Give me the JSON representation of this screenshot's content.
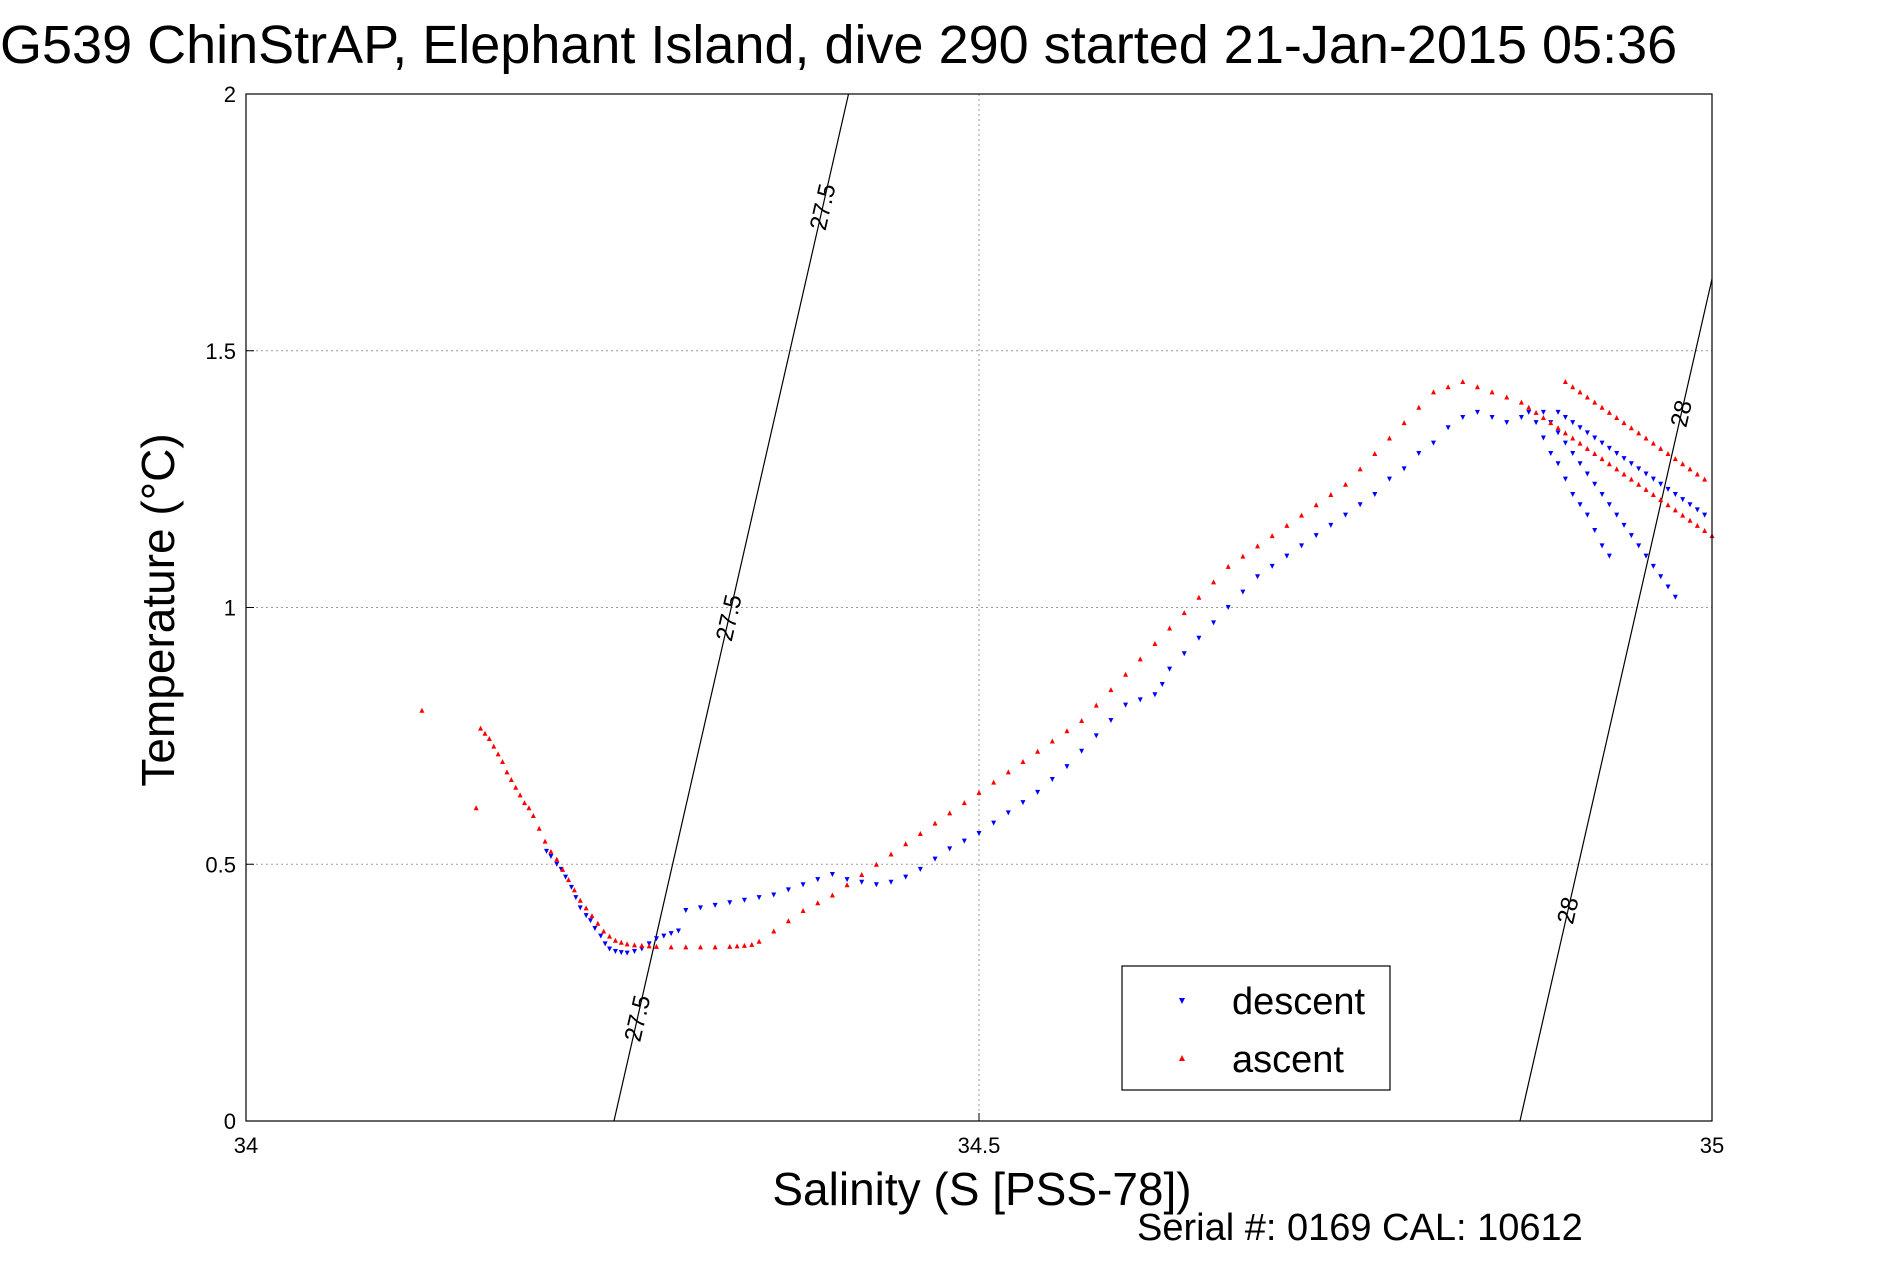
{
  "chart_data": {
    "type": "scatter",
    "title": "G539 ChinStrAP, Elephant Island, dive 290 started 21-Jan-2015 05:36",
    "xlabel": "Salinity (S [PSS-78])",
    "ylabel": "Temperature (°C)",
    "xlim": [
      34,
      35
    ],
    "ylim": [
      0,
      2
    ],
    "xticks": [
      34,
      34.5,
      35
    ],
    "xtick_labels": [
      "34",
      "34.5",
      "35"
    ],
    "yticks": [
      0,
      0.5,
      1,
      1.5,
      2
    ],
    "ytick_labels": [
      "0",
      "0.5",
      "1",
      "1.5",
      "2"
    ],
    "grid": true,
    "legend_position": "bottom-right",
    "isopycnals": [
      {
        "label": "27.5",
        "x_at_ymin": 34.251,
        "x_at_ymax": 34.411
      },
      {
        "label": "28",
        "x_at_ymin": 34.869,
        "x_at_ymax": 35.0,
        "y_at_xmax": 1.64
      }
    ],
    "series": [
      {
        "name": "descent",
        "color": "#0000ff",
        "marker": "triangle-down",
        "points": [
          [
            34.205,
            0.525
          ],
          [
            34.208,
            0.515
          ],
          [
            34.212,
            0.5
          ],
          [
            34.215,
            0.49
          ],
          [
            34.218,
            0.475
          ],
          [
            34.222,
            0.455
          ],
          [
            34.225,
            0.435
          ],
          [
            34.228,
            0.415
          ],
          [
            34.232,
            0.4
          ],
          [
            34.235,
            0.39
          ],
          [
            34.238,
            0.375
          ],
          [
            34.242,
            0.36
          ],
          [
            34.245,
            0.345
          ],
          [
            34.248,
            0.335
          ],
          [
            34.252,
            0.33
          ],
          [
            34.256,
            0.328
          ],
          [
            34.26,
            0.327
          ],
          [
            34.265,
            0.33
          ],
          [
            34.27,
            0.335
          ],
          [
            34.275,
            0.345
          ],
          [
            34.28,
            0.355
          ],
          [
            34.285,
            0.36
          ],
          [
            34.29,
            0.365
          ],
          [
            34.295,
            0.37
          ],
          [
            34.3,
            0.41
          ],
          [
            34.31,
            0.415
          ],
          [
            34.32,
            0.42
          ],
          [
            34.33,
            0.425
          ],
          [
            34.34,
            0.43
          ],
          [
            34.35,
            0.435
          ],
          [
            34.36,
            0.44
          ],
          [
            34.37,
            0.45
          ],
          [
            34.38,
            0.46
          ],
          [
            34.39,
            0.47
          ],
          [
            34.4,
            0.48
          ],
          [
            34.41,
            0.47
          ],
          [
            34.42,
            0.465
          ],
          [
            34.43,
            0.46
          ],
          [
            34.44,
            0.465
          ],
          [
            34.45,
            0.475
          ],
          [
            34.46,
            0.49
          ],
          [
            34.47,
            0.51
          ],
          [
            34.48,
            0.53
          ],
          [
            34.49,
            0.545
          ],
          [
            34.5,
            0.56
          ],
          [
            34.51,
            0.58
          ],
          [
            34.52,
            0.6
          ],
          [
            34.53,
            0.62
          ],
          [
            34.54,
            0.64
          ],
          [
            34.55,
            0.665
          ],
          [
            34.56,
            0.69
          ],
          [
            34.57,
            0.72
          ],
          [
            34.58,
            0.75
          ],
          [
            34.59,
            0.78
          ],
          [
            34.6,
            0.81
          ],
          [
            34.61,
            0.82
          ],
          [
            34.62,
            0.83
          ],
          [
            34.625,
            0.85
          ],
          [
            34.63,
            0.88
          ],
          [
            34.64,
            0.91
          ],
          [
            34.65,
            0.94
          ],
          [
            34.66,
            0.97
          ],
          [
            34.67,
            1.0
          ],
          [
            34.68,
            1.03
          ],
          [
            34.69,
            1.06
          ],
          [
            34.7,
            1.08
          ],
          [
            34.71,
            1.1
          ],
          [
            34.72,
            1.12
          ],
          [
            34.73,
            1.14
          ],
          [
            34.74,
            1.16
          ],
          [
            34.75,
            1.18
          ],
          [
            34.76,
            1.2
          ],
          [
            34.77,
            1.22
          ],
          [
            34.78,
            1.25
          ],
          [
            34.79,
            1.27
          ],
          [
            34.8,
            1.3
          ],
          [
            34.81,
            1.32
          ],
          [
            34.82,
            1.35
          ],
          [
            34.83,
            1.37
          ],
          [
            34.84,
            1.38
          ],
          [
            34.85,
            1.37
          ],
          [
            34.86,
            1.36
          ],
          [
            34.87,
            1.37
          ],
          [
            34.875,
            1.38
          ],
          [
            34.88,
            1.36
          ],
          [
            34.885,
            1.33
          ],
          [
            34.89,
            1.3
          ],
          [
            34.895,
            1.28
          ],
          [
            34.9,
            1.25
          ],
          [
            34.905,
            1.22
          ],
          [
            34.91,
            1.2
          ],
          [
            34.915,
            1.18
          ],
          [
            34.92,
            1.15
          ],
          [
            34.925,
            1.12
          ],
          [
            34.93,
            1.1
          ],
          [
            34.885,
            1.38
          ],
          [
            34.89,
            1.36
          ],
          [
            34.895,
            1.34
          ],
          [
            34.9,
            1.32
          ],
          [
            34.905,
            1.3
          ],
          [
            34.91,
            1.28
          ],
          [
            34.915,
            1.26
          ],
          [
            34.92,
            1.24
          ],
          [
            34.925,
            1.22
          ],
          [
            34.93,
            1.2
          ],
          [
            34.935,
            1.18
          ],
          [
            34.94,
            1.16
          ],
          [
            34.945,
            1.14
          ],
          [
            34.95,
            1.12
          ],
          [
            34.955,
            1.1
          ],
          [
            34.96,
            1.08
          ],
          [
            34.965,
            1.06
          ],
          [
            34.97,
            1.04
          ],
          [
            34.975,
            1.02
          ],
          [
            34.895,
            1.38
          ],
          [
            34.9,
            1.37
          ],
          [
            34.905,
            1.36
          ],
          [
            34.91,
            1.35
          ],
          [
            34.915,
            1.34
          ],
          [
            34.92,
            1.33
          ],
          [
            34.925,
            1.32
          ],
          [
            34.93,
            1.31
          ],
          [
            34.935,
            1.3
          ],
          [
            34.94,
            1.29
          ],
          [
            34.945,
            1.28
          ],
          [
            34.95,
            1.27
          ],
          [
            34.955,
            1.26
          ],
          [
            34.96,
            1.25
          ],
          [
            34.965,
            1.24
          ],
          [
            34.97,
            1.23
          ],
          [
            34.975,
            1.22
          ],
          [
            34.98,
            1.21
          ],
          [
            34.985,
            1.2
          ],
          [
            34.99,
            1.19
          ],
          [
            34.995,
            1.18
          ]
        ]
      },
      {
        "name": "ascent",
        "color": "#ff0000",
        "marker": "triangle-up",
        "points": [
          [
            34.12,
            0.8
          ],
          [
            34.16,
            0.765
          ],
          [
            34.163,
            0.755
          ],
          [
            34.166,
            0.745
          ],
          [
            34.169,
            0.73
          ],
          [
            34.172,
            0.715
          ],
          [
            34.175,
            0.7
          ],
          [
            34.178,
            0.68
          ],
          [
            34.181,
            0.665
          ],
          [
            34.184,
            0.65
          ],
          [
            34.187,
            0.635
          ],
          [
            34.19,
            0.62
          ],
          [
            34.193,
            0.61
          ],
          [
            34.157,
            0.61
          ],
          [
            34.196,
            0.595
          ],
          [
            34.2,
            0.57
          ],
          [
            34.204,
            0.545
          ],
          [
            34.208,
            0.525
          ],
          [
            34.212,
            0.51
          ],
          [
            34.216,
            0.49
          ],
          [
            34.22,
            0.47
          ],
          [
            34.224,
            0.45
          ],
          [
            34.228,
            0.43
          ],
          [
            34.232,
            0.415
          ],
          [
            34.236,
            0.4
          ],
          [
            34.24,
            0.385
          ],
          [
            34.244,
            0.37
          ],
          [
            34.248,
            0.36
          ],
          [
            34.252,
            0.352
          ],
          [
            34.256,
            0.348
          ],
          [
            34.26,
            0.345
          ],
          [
            34.265,
            0.343
          ],
          [
            34.27,
            0.342
          ],
          [
            34.275,
            0.341
          ],
          [
            34.28,
            0.34
          ],
          [
            34.29,
            0.339
          ],
          [
            34.3,
            0.339
          ],
          [
            34.31,
            0.339
          ],
          [
            34.32,
            0.339
          ],
          [
            34.33,
            0.34
          ],
          [
            34.335,
            0.341
          ],
          [
            34.34,
            0.342
          ],
          [
            34.345,
            0.344
          ],
          [
            34.35,
            0.35
          ],
          [
            34.36,
            0.37
          ],
          [
            34.37,
            0.39
          ],
          [
            34.38,
            0.41
          ],
          [
            34.39,
            0.425
          ],
          [
            34.4,
            0.44
          ],
          [
            34.41,
            0.46
          ],
          [
            34.42,
            0.48
          ],
          [
            34.43,
            0.5
          ],
          [
            34.44,
            0.52
          ],
          [
            34.45,
            0.54
          ],
          [
            34.46,
            0.56
          ],
          [
            34.47,
            0.58
          ],
          [
            34.48,
            0.6
          ],
          [
            34.49,
            0.62
          ],
          [
            34.5,
            0.64
          ],
          [
            34.51,
            0.66
          ],
          [
            34.52,
            0.68
          ],
          [
            34.53,
            0.7
          ],
          [
            34.54,
            0.72
          ],
          [
            34.55,
            0.74
          ],
          [
            34.56,
            0.76
          ],
          [
            34.57,
            0.78
          ],
          [
            34.58,
            0.81
          ],
          [
            34.59,
            0.84
          ],
          [
            34.6,
            0.87
          ],
          [
            34.61,
            0.9
          ],
          [
            34.62,
            0.93
          ],
          [
            34.63,
            0.96
          ],
          [
            34.64,
            0.99
          ],
          [
            34.65,
            1.02
          ],
          [
            34.66,
            1.05
          ],
          [
            34.67,
            1.08
          ],
          [
            34.68,
            1.1
          ],
          [
            34.69,
            1.12
          ],
          [
            34.7,
            1.14
          ],
          [
            34.71,
            1.16
          ],
          [
            34.72,
            1.18
          ],
          [
            34.73,
            1.2
          ],
          [
            34.74,
            1.22
          ],
          [
            34.75,
            1.24
          ],
          [
            34.76,
            1.27
          ],
          [
            34.77,
            1.3
          ],
          [
            34.78,
            1.33
          ],
          [
            34.79,
            1.36
          ],
          [
            34.8,
            1.39
          ],
          [
            34.81,
            1.42
          ],
          [
            34.82,
            1.43
          ],
          [
            34.83,
            1.44
          ],
          [
            34.84,
            1.43
          ],
          [
            34.85,
            1.42
          ],
          [
            34.86,
            1.41
          ],
          [
            34.87,
            1.4
          ],
          [
            34.875,
            1.39
          ],
          [
            34.88,
            1.38
          ],
          [
            34.885,
            1.37
          ],
          [
            34.89,
            1.36
          ],
          [
            34.895,
            1.35
          ],
          [
            34.9,
            1.34
          ],
          [
            34.905,
            1.33
          ],
          [
            34.91,
            1.32
          ],
          [
            34.915,
            1.31
          ],
          [
            34.92,
            1.3
          ],
          [
            34.925,
            1.29
          ],
          [
            34.93,
            1.28
          ],
          [
            34.935,
            1.27
          ],
          [
            34.94,
            1.26
          ],
          [
            34.945,
            1.25
          ],
          [
            34.95,
            1.24
          ],
          [
            34.955,
            1.23
          ],
          [
            34.96,
            1.22
          ],
          [
            34.965,
            1.21
          ],
          [
            34.97,
            1.2
          ],
          [
            34.975,
            1.19
          ],
          [
            34.98,
            1.18
          ],
          [
            34.985,
            1.17
          ],
          [
            34.99,
            1.16
          ],
          [
            34.995,
            1.15
          ],
          [
            35.0,
            1.14
          ],
          [
            34.9,
            1.44
          ],
          [
            34.905,
            1.43
          ],
          [
            34.91,
            1.42
          ],
          [
            34.915,
            1.41
          ],
          [
            34.92,
            1.4
          ],
          [
            34.925,
            1.39
          ],
          [
            34.93,
            1.38
          ],
          [
            34.935,
            1.37
          ],
          [
            34.94,
            1.36
          ],
          [
            34.945,
            1.35
          ],
          [
            34.95,
            1.34
          ],
          [
            34.955,
            1.33
          ],
          [
            34.96,
            1.32
          ],
          [
            34.965,
            1.31
          ],
          [
            34.97,
            1.3
          ],
          [
            34.975,
            1.29
          ],
          [
            34.98,
            1.28
          ],
          [
            34.985,
            1.27
          ],
          [
            34.99,
            1.26
          ],
          [
            34.995,
            1.25
          ]
        ]
      }
    ]
  },
  "footer": {
    "serial_text": "Serial #: 0169 CAL: 10612"
  }
}
